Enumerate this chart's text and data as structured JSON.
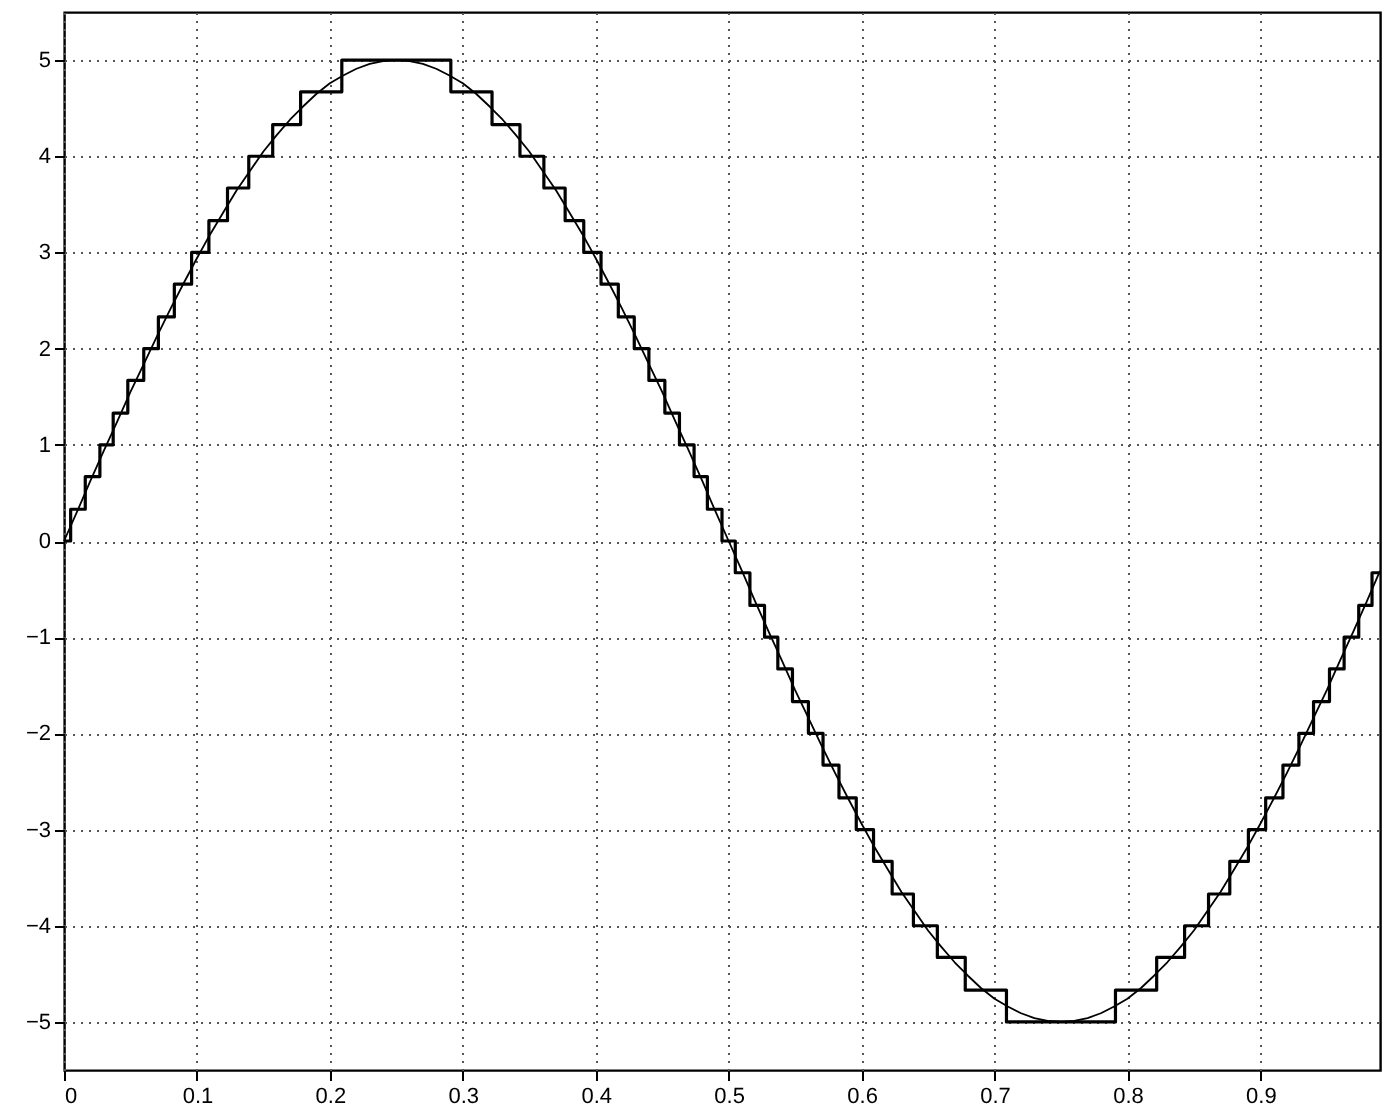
{
  "chart_data": {
    "type": "line",
    "xlim": [
      0,
      0.99
    ],
    "xticks": [
      0,
      0.1,
      0.2,
      0.3,
      0.4,
      0.5,
      0.6,
      0.7,
      0.8,
      0.9
    ],
    "ylim": [
      -5.5,
      5.5
    ],
    "yticks": [
      -5,
      -4,
      -3,
      -2,
      -1,
      0,
      1,
      2,
      3,
      4,
      5
    ],
    "grid": true,
    "line_style": "solid",
    "marker": "none",
    "series": [
      {
        "type": "step",
        "color": "#000000",
        "x": [
          0,
          0.005,
          0.016,
          0.027,
          0.037,
          0.048,
          0.06,
          0.071,
          0.083,
          0.096,
          0.109,
          0.123,
          0.139,
          0.157,
          0.178,
          0.209,
          0.291,
          0.322,
          0.343,
          0.361,
          0.377,
          0.391,
          0.404,
          0.417,
          0.429,
          0.44,
          0.452,
          0.463,
          0.474,
          0.484,
          0.495,
          0.505,
          0.516,
          0.527,
          0.537,
          0.548,
          0.56,
          0.571,
          0.583,
          0.596,
          0.609,
          0.623,
          0.639,
          0.657,
          0.678,
          0.709,
          0.791,
          0.822,
          0.843,
          0.861,
          0.877,
          0.891,
          0.904,
          0.917,
          0.929,
          0.94,
          0.952,
          0.963,
          0.974,
          0.984,
          0.99
        ],
        "values": [
          0,
          0.33,
          0.67,
          1,
          1.33,
          1.67,
          2,
          2.33,
          2.67,
          3,
          3.33,
          3.67,
          4,
          4.33,
          4.67,
          5,
          4.67,
          4.33,
          4,
          3.67,
          3.33,
          3,
          2.67,
          2.33,
          2,
          1.67,
          1.33,
          1,
          0.67,
          0.33,
          0,
          -0.33,
          -0.67,
          -1,
          -1.33,
          -1.67,
          -2,
          -2.33,
          -2.67,
          -3,
          -3.33,
          -3.67,
          -4,
          -4.33,
          -4.67,
          -5,
          -4.67,
          -4.33,
          -4,
          -3.67,
          -3.33,
          -3,
          -2.67,
          -2.33,
          -2,
          -1.67,
          -1.33,
          -1,
          -0.67,
          -0.33,
          -0.33
        ]
      },
      {
        "type": "line",
        "color": "#000000",
        "x": [
          0,
          0.01,
          0.02,
          0.03,
          0.04,
          0.05,
          0.06,
          0.07,
          0.08,
          0.09,
          0.1,
          0.11,
          0.12,
          0.13,
          0.14,
          0.15,
          0.16,
          0.17,
          0.18,
          0.19,
          0.2,
          0.21,
          0.22,
          0.23,
          0.24,
          0.25,
          0.26,
          0.27,
          0.28,
          0.29,
          0.3,
          0.31,
          0.32,
          0.33,
          0.34,
          0.35,
          0.36,
          0.37,
          0.38,
          0.39,
          0.4,
          0.41,
          0.42,
          0.43,
          0.44,
          0.45,
          0.46,
          0.47,
          0.48,
          0.49,
          0.5,
          0.51,
          0.52,
          0.53,
          0.54,
          0.55,
          0.56,
          0.57,
          0.58,
          0.59,
          0.6,
          0.61,
          0.62,
          0.63,
          0.64,
          0.65,
          0.66,
          0.67,
          0.68,
          0.69,
          0.7,
          0.71,
          0.72,
          0.73,
          0.74,
          0.75,
          0.76,
          0.77,
          0.78,
          0.79,
          0.8,
          0.81,
          0.82,
          0.83,
          0.84,
          0.85,
          0.86,
          0.87,
          0.88,
          0.89,
          0.9,
          0.91,
          0.92,
          0.93,
          0.94,
          0.95,
          0.96,
          0.97,
          0.98,
          0.99
        ],
        "values": [
          0,
          0.31,
          0.63,
          0.94,
          1.24,
          1.55,
          1.84,
          2.13,
          2.41,
          2.68,
          2.94,
          3.19,
          3.42,
          3.65,
          3.85,
          4.05,
          4.22,
          4.38,
          4.52,
          4.65,
          4.76,
          4.84,
          4.91,
          4.96,
          4.99,
          5,
          4.99,
          4.96,
          4.91,
          4.84,
          4.76,
          4.65,
          4.52,
          4.38,
          4.22,
          4.05,
          3.85,
          3.65,
          3.42,
          3.19,
          2.94,
          2.68,
          2.41,
          2.13,
          1.84,
          1.55,
          1.24,
          0.94,
          0.63,
          0.31,
          0,
          -0.31,
          -0.63,
          -0.94,
          -1.24,
          -1.55,
          -1.84,
          -2.13,
          -2.41,
          -2.68,
          -2.94,
          -3.19,
          -3.42,
          -3.65,
          -3.85,
          -4.05,
          -4.22,
          -4.38,
          -4.52,
          -4.65,
          -4.76,
          -4.84,
          -4.91,
          -4.96,
          -4.99,
          -5,
          -4.99,
          -4.96,
          -4.91,
          -4.84,
          -4.76,
          -4.65,
          -4.52,
          -4.38,
          -4.22,
          -4.05,
          -3.85,
          -3.65,
          -3.42,
          -3.19,
          -2.94,
          -2.68,
          -2.41,
          -2.13,
          -1.84,
          -1.55,
          -1.24,
          -0.94,
          -0.63,
          -0.31
        ]
      }
    ]
  }
}
